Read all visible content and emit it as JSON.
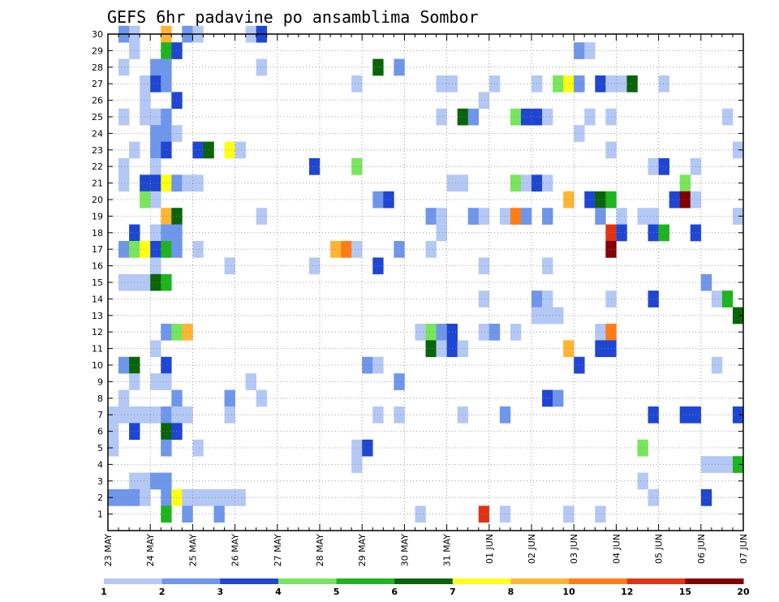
{
  "chart_data": {
    "type": "heatmap",
    "title": "GEFS 6hr padavine po ansamblima Sombor",
    "xlabel": "",
    "ylabel": "",
    "x_tick_labels": [
      "23 MAY",
      "24 MAY",
      "25 MAY",
      "26 MAY",
      "27 MAY",
      "28 MAY",
      "29 MAY",
      "30 MAY",
      "31 MAY",
      "01 JUN",
      "02 JUN",
      "03 JUN",
      "04 JUN",
      "05 JUN",
      "06 JUN",
      "07 JUN"
    ],
    "y_tick_labels": [
      "1",
      "2",
      "3",
      "4",
      "5",
      "6",
      "7",
      "8",
      "9",
      "10",
      "11",
      "12",
      "13",
      "14",
      "15",
      "16",
      "17",
      "18",
      "19",
      "20",
      "21",
      "22",
      "23",
      "24",
      "25",
      "26",
      "27",
      "28",
      "29",
      "30"
    ],
    "x_steps_total": 60,
    "ylim": [
      0,
      30
    ],
    "grid": true,
    "legend_placement": "bottom",
    "legend": {
      "labels": [
        "1",
        "2",
        "3",
        "4",
        "5",
        "6",
        "7",
        "8",
        "10",
        "12",
        "15",
        "20"
      ],
      "colors": [
        "#b4c8f5",
        "#6e96eb",
        "#1e46d2",
        "#78e65a",
        "#1eb41e",
        "#0a640a",
        "#ffff14",
        "#ffb432",
        "#ff7d14",
        "#e13214",
        "#820000"
      ]
    },
    "category_colors": {
      "1": "#b4c8f5",
      "2": "#6e96eb",
      "3": "#1e46d2",
      "4": "#78e65a",
      "5": "#1eb41e",
      "6": "#0a640a",
      "7": "#ffff14",
      "8": "#ffb432",
      "9": "#ff7d14",
      "10": "#e13214",
      "11": "#820000"
    },
    "cells": [
      {
        "m": 30,
        "t": 1,
        "c": 2
      },
      {
        "m": 30,
        "t": 2,
        "c": 1
      },
      {
        "m": 30,
        "t": 5,
        "c": 8
      },
      {
        "m": 30,
        "t": 7,
        "c": 2
      },
      {
        "m": 30,
        "t": 8,
        "c": 1
      },
      {
        "m": 30,
        "t": 13,
        "c": 1
      },
      {
        "m": 30,
        "t": 14,
        "c": 3
      },
      {
        "m": 29,
        "t": 2,
        "c": 1
      },
      {
        "m": 29,
        "t": 5,
        "c": 5
      },
      {
        "m": 29,
        "t": 6,
        "c": 3
      },
      {
        "m": 29,
        "t": 44,
        "c": 2
      },
      {
        "m": 29,
        "t": 45,
        "c": 1
      },
      {
        "m": 28,
        "t": 1,
        "c": 1
      },
      {
        "m": 28,
        "t": 4,
        "c": 2
      },
      {
        "m": 28,
        "t": 5,
        "c": 2
      },
      {
        "m": 28,
        "t": 14,
        "c": 1
      },
      {
        "m": 28,
        "t": 25,
        "c": 6
      },
      {
        "m": 28,
        "t": 27,
        "c": 2
      },
      {
        "m": 27,
        "t": 3,
        "c": 1
      },
      {
        "m": 27,
        "t": 4,
        "c": 3
      },
      {
        "m": 27,
        "t": 5,
        "c": 2
      },
      {
        "m": 27,
        "t": 23,
        "c": 1
      },
      {
        "m": 27,
        "t": 31,
        "c": 1
      },
      {
        "m": 27,
        "t": 32,
        "c": 1
      },
      {
        "m": 27,
        "t": 36,
        "c": 1
      },
      {
        "m": 27,
        "t": 40,
        "c": 1
      },
      {
        "m": 27,
        "t": 42,
        "c": 4
      },
      {
        "m": 27,
        "t": 43,
        "c": 7
      },
      {
        "m": 27,
        "t": 44,
        "c": 2
      },
      {
        "m": 27,
        "t": 46,
        "c": 3
      },
      {
        "m": 27,
        "t": 47,
        "c": 1
      },
      {
        "m": 27,
        "t": 48,
        "c": 1
      },
      {
        "m": 27,
        "t": 49,
        "c": 6
      },
      {
        "m": 27,
        "t": 52,
        "c": 1
      },
      {
        "m": 26,
        "t": 3,
        "c": 1
      },
      {
        "m": 26,
        "t": 6,
        "c": 3
      },
      {
        "m": 26,
        "t": 35,
        "c": 1
      },
      {
        "m": 25,
        "t": 1,
        "c": 1
      },
      {
        "m": 25,
        "t": 3,
        "c": 1
      },
      {
        "m": 25,
        "t": 4,
        "c": 1
      },
      {
        "m": 25,
        "t": 5,
        "c": 2
      },
      {
        "m": 25,
        "t": 31,
        "c": 1
      },
      {
        "m": 25,
        "t": 33,
        "c": 6
      },
      {
        "m": 25,
        "t": 34,
        "c": 2
      },
      {
        "m": 25,
        "t": 38,
        "c": 4
      },
      {
        "m": 25,
        "t": 39,
        "c": 3
      },
      {
        "m": 25,
        "t": 40,
        "c": 3
      },
      {
        "m": 25,
        "t": 41,
        "c": 1
      },
      {
        "m": 25,
        "t": 45,
        "c": 1
      },
      {
        "m": 25,
        "t": 47,
        "c": 1
      },
      {
        "m": 25,
        "t": 58,
        "c": 1
      },
      {
        "m": 24,
        "t": 4,
        "c": 2
      },
      {
        "m": 24,
        "t": 5,
        "c": 2
      },
      {
        "m": 24,
        "t": 6,
        "c": 1
      },
      {
        "m": 24,
        "t": 44,
        "c": 1
      },
      {
        "m": 23,
        "t": 2,
        "c": 1
      },
      {
        "m": 23,
        "t": 4,
        "c": 2
      },
      {
        "m": 23,
        "t": 5,
        "c": 3
      },
      {
        "m": 23,
        "t": 8,
        "c": 3
      },
      {
        "m": 23,
        "t": 9,
        "c": 6
      },
      {
        "m": 23,
        "t": 11,
        "c": 7
      },
      {
        "m": 23,
        "t": 12,
        "c": 1
      },
      {
        "m": 23,
        "t": 47,
        "c": 1
      },
      {
        "m": 23,
        "t": 59,
        "c": 1
      },
      {
        "m": 22,
        "t": 1,
        "c": 1
      },
      {
        "m": 22,
        "t": 4,
        "c": 1
      },
      {
        "m": 22,
        "t": 19,
        "c": 3
      },
      {
        "m": 22,
        "t": 23,
        "c": 4
      },
      {
        "m": 22,
        "t": 51,
        "c": 1
      },
      {
        "m": 22,
        "t": 52,
        "c": 3
      },
      {
        "m": 22,
        "t": 55,
        "c": 1
      },
      {
        "m": 21,
        "t": 1,
        "c": 1
      },
      {
        "m": 21,
        "t": 3,
        "c": 3
      },
      {
        "m": 21,
        "t": 4,
        "c": 3
      },
      {
        "m": 21,
        "t": 5,
        "c": 7
      },
      {
        "m": 21,
        "t": 6,
        "c": 2
      },
      {
        "m": 21,
        "t": 7,
        "c": 1
      },
      {
        "m": 21,
        "t": 8,
        "c": 1
      },
      {
        "m": 21,
        "t": 32,
        "c": 1
      },
      {
        "m": 21,
        "t": 33,
        "c": 1
      },
      {
        "m": 21,
        "t": 38,
        "c": 4
      },
      {
        "m": 21,
        "t": 39,
        "c": 1
      },
      {
        "m": 21,
        "t": 40,
        "c": 3
      },
      {
        "m": 21,
        "t": 41,
        "c": 1
      },
      {
        "m": 21,
        "t": 54,
        "c": 4
      },
      {
        "m": 20,
        "t": 3,
        "c": 4
      },
      {
        "m": 20,
        "t": 4,
        "c": 1
      },
      {
        "m": 20,
        "t": 25,
        "c": 2
      },
      {
        "m": 20,
        "t": 26,
        "c": 3
      },
      {
        "m": 20,
        "t": 43,
        "c": 8
      },
      {
        "m": 20,
        "t": 45,
        "c": 3
      },
      {
        "m": 20,
        "t": 46,
        "c": 6
      },
      {
        "m": 20,
        "t": 47,
        "c": 5
      },
      {
        "m": 20,
        "t": 53,
        "c": 3
      },
      {
        "m": 20,
        "t": 54,
        "c": 11
      },
      {
        "m": 20,
        "t": 55,
        "c": 1
      },
      {
        "m": 19,
        "t": 5,
        "c": 8
      },
      {
        "m": 19,
        "t": 6,
        "c": 6
      },
      {
        "m": 19,
        "t": 14,
        "c": 1
      },
      {
        "m": 19,
        "t": 30,
        "c": 2
      },
      {
        "m": 19,
        "t": 31,
        "c": 1
      },
      {
        "m": 19,
        "t": 34,
        "c": 2
      },
      {
        "m": 19,
        "t": 35,
        "c": 1
      },
      {
        "m": 19,
        "t": 37,
        "c": 1
      },
      {
        "m": 19,
        "t": 38,
        "c": 9
      },
      {
        "m": 19,
        "t": 39,
        "c": 2
      },
      {
        "m": 19,
        "t": 41,
        "c": 2
      },
      {
        "m": 19,
        "t": 46,
        "c": 2
      },
      {
        "m": 19,
        "t": 48,
        "c": 1
      },
      {
        "m": 19,
        "t": 50,
        "c": 1
      },
      {
        "m": 19,
        "t": 51,
        "c": 1
      },
      {
        "m": 19,
        "t": 59,
        "c": 1
      },
      {
        "m": 18,
        "t": 2,
        "c": 3
      },
      {
        "m": 18,
        "t": 4,
        "c": 1
      },
      {
        "m": 18,
        "t": 5,
        "c": 2
      },
      {
        "m": 18,
        "t": 6,
        "c": 2
      },
      {
        "m": 18,
        "t": 31,
        "c": 1
      },
      {
        "m": 18,
        "t": 47,
        "c": 10
      },
      {
        "m": 18,
        "t": 48,
        "c": 3
      },
      {
        "m": 18,
        "t": 51,
        "c": 3
      },
      {
        "m": 18,
        "t": 52,
        "c": 5
      },
      {
        "m": 18,
        "t": 55,
        "c": 3
      },
      {
        "m": 17,
        "t": 1,
        "c": 2
      },
      {
        "m": 17,
        "t": 2,
        "c": 4
      },
      {
        "m": 17,
        "t": 3,
        "c": 7
      },
      {
        "m": 17,
        "t": 4,
        "c": 3
      },
      {
        "m": 17,
        "t": 5,
        "c": 5
      },
      {
        "m": 17,
        "t": 6,
        "c": 2
      },
      {
        "m": 17,
        "t": 8,
        "c": 1
      },
      {
        "m": 17,
        "t": 21,
        "c": 8
      },
      {
        "m": 17,
        "t": 22,
        "c": 9
      },
      {
        "m": 17,
        "t": 23,
        "c": 1
      },
      {
        "m": 17,
        "t": 27,
        "c": 2
      },
      {
        "m": 17,
        "t": 30,
        "c": 1
      },
      {
        "m": 17,
        "t": 47,
        "c": 11
      },
      {
        "m": 16,
        "t": 4,
        "c": 1
      },
      {
        "m": 16,
        "t": 11,
        "c": 1
      },
      {
        "m": 16,
        "t": 19,
        "c": 1
      },
      {
        "m": 16,
        "t": 25,
        "c": 3
      },
      {
        "m": 16,
        "t": 35,
        "c": 1
      },
      {
        "m": 16,
        "t": 41,
        "c": 1
      },
      {
        "m": 15,
        "t": 1,
        "c": 1
      },
      {
        "m": 15,
        "t": 2,
        "c": 1
      },
      {
        "m": 15,
        "t": 3,
        "c": 1
      },
      {
        "m": 15,
        "t": 4,
        "c": 6
      },
      {
        "m": 15,
        "t": 5,
        "c": 5
      },
      {
        "m": 15,
        "t": 56,
        "c": 2
      },
      {
        "m": 14,
        "t": 35,
        "c": 1
      },
      {
        "m": 14,
        "t": 40,
        "c": 2
      },
      {
        "m": 14,
        "t": 41,
        "c": 1
      },
      {
        "m": 14,
        "t": 47,
        "c": 1
      },
      {
        "m": 14,
        "t": 51,
        "c": 3
      },
      {
        "m": 14,
        "t": 57,
        "c": 1
      },
      {
        "m": 14,
        "t": 58,
        "c": 5
      },
      {
        "m": 13,
        "t": 40,
        "c": 1
      },
      {
        "m": 13,
        "t": 41,
        "c": 1
      },
      {
        "m": 13,
        "t": 42,
        "c": 1
      },
      {
        "m": 13,
        "t": 59,
        "c": 6
      },
      {
        "m": 12,
        "t": 5,
        "c": 2
      },
      {
        "m": 12,
        "t": 6,
        "c": 4
      },
      {
        "m": 12,
        "t": 7,
        "c": 8
      },
      {
        "m": 12,
        "t": 29,
        "c": 1
      },
      {
        "m": 12,
        "t": 30,
        "c": 4
      },
      {
        "m": 12,
        "t": 31,
        "c": 2
      },
      {
        "m": 12,
        "t": 32,
        "c": 3
      },
      {
        "m": 12,
        "t": 35,
        "c": 1
      },
      {
        "m": 12,
        "t": 36,
        "c": 2
      },
      {
        "m": 12,
        "t": 38,
        "c": 1
      },
      {
        "m": 12,
        "t": 46,
        "c": 1
      },
      {
        "m": 12,
        "t": 47,
        "c": 9
      },
      {
        "m": 11,
        "t": 4,
        "c": 1
      },
      {
        "m": 11,
        "t": 30,
        "c": 6
      },
      {
        "m": 11,
        "t": 31,
        "c": 1
      },
      {
        "m": 11,
        "t": 32,
        "c": 3
      },
      {
        "m": 11,
        "t": 33,
        "c": 1
      },
      {
        "m": 11,
        "t": 43,
        "c": 8
      },
      {
        "m": 11,
        "t": 46,
        "c": 3
      },
      {
        "m": 11,
        "t": 47,
        "c": 3
      },
      {
        "m": 10,
        "t": 1,
        "c": 2
      },
      {
        "m": 10,
        "t": 2,
        "c": 6
      },
      {
        "m": 10,
        "t": 5,
        "c": 3
      },
      {
        "m": 10,
        "t": 24,
        "c": 2
      },
      {
        "m": 10,
        "t": 25,
        "c": 1
      },
      {
        "m": 10,
        "t": 44,
        "c": 3
      },
      {
        "m": 10,
        "t": 57,
        "c": 1
      },
      {
        "m": 9,
        "t": 2,
        "c": 1
      },
      {
        "m": 9,
        "t": 4,
        "c": 1
      },
      {
        "m": 9,
        "t": 5,
        "c": 1
      },
      {
        "m": 9,
        "t": 13,
        "c": 1
      },
      {
        "m": 9,
        "t": 27,
        "c": 2
      },
      {
        "m": 8,
        "t": 1,
        "c": 1
      },
      {
        "m": 8,
        "t": 6,
        "c": 2
      },
      {
        "m": 8,
        "t": 11,
        "c": 2
      },
      {
        "m": 8,
        "t": 14,
        "c": 1
      },
      {
        "m": 8,
        "t": 41,
        "c": 3
      },
      {
        "m": 8,
        "t": 42,
        "c": 2
      },
      {
        "m": 7,
        "t": 0,
        "c": 1
      },
      {
        "m": 7,
        "t": 1,
        "c": 1
      },
      {
        "m": 7,
        "t": 2,
        "c": 1
      },
      {
        "m": 7,
        "t": 3,
        "c": 1
      },
      {
        "m": 7,
        "t": 4,
        "c": 1
      },
      {
        "m": 7,
        "t": 5,
        "c": 2
      },
      {
        "m": 7,
        "t": 6,
        "c": 1
      },
      {
        "m": 7,
        "t": 7,
        "c": 1
      },
      {
        "m": 7,
        "t": 11,
        "c": 1
      },
      {
        "m": 7,
        "t": 25,
        "c": 1
      },
      {
        "m": 7,
        "t": 27,
        "c": 1
      },
      {
        "m": 7,
        "t": 33,
        "c": 1
      },
      {
        "m": 7,
        "t": 37,
        "c": 2
      },
      {
        "m": 7,
        "t": 51,
        "c": 3
      },
      {
        "m": 7,
        "t": 54,
        "c": 3
      },
      {
        "m": 7,
        "t": 55,
        "c": 3
      },
      {
        "m": 7,
        "t": 59,
        "c": 3
      },
      {
        "m": 6,
        "t": 0,
        "c": 1
      },
      {
        "m": 6,
        "t": 2,
        "c": 3
      },
      {
        "m": 6,
        "t": 5,
        "c": 6
      },
      {
        "m": 6,
        "t": 6,
        "c": 3
      },
      {
        "m": 5,
        "t": 0,
        "c": 1
      },
      {
        "m": 5,
        "t": 5,
        "c": 2
      },
      {
        "m": 5,
        "t": 8,
        "c": 1
      },
      {
        "m": 5,
        "t": 23,
        "c": 1
      },
      {
        "m": 5,
        "t": 24,
        "c": 3
      },
      {
        "m": 5,
        "t": 50,
        "c": 4
      },
      {
        "m": 4,
        "t": 23,
        "c": 1
      },
      {
        "m": 4,
        "t": 56,
        "c": 1
      },
      {
        "m": 4,
        "t": 57,
        "c": 1
      },
      {
        "m": 4,
        "t": 58,
        "c": 1
      },
      {
        "m": 4,
        "t": 59,
        "c": 5
      },
      {
        "m": 3,
        "t": 2,
        "c": 1
      },
      {
        "m": 3,
        "t": 3,
        "c": 1
      },
      {
        "m": 3,
        "t": 4,
        "c": 2
      },
      {
        "m": 3,
        "t": 5,
        "c": 2
      },
      {
        "m": 3,
        "t": 50,
        "c": 1
      },
      {
        "m": 2,
        "t": 0,
        "c": 2
      },
      {
        "m": 2,
        "t": 1,
        "c": 2
      },
      {
        "m": 2,
        "t": 2,
        "c": 2
      },
      {
        "m": 2,
        "t": 3,
        "c": 1
      },
      {
        "m": 2,
        "t": 5,
        "c": 2
      },
      {
        "m": 2,
        "t": 6,
        "c": 7
      },
      {
        "m": 2,
        "t": 7,
        "c": 1
      },
      {
        "m": 2,
        "t": 8,
        "c": 1
      },
      {
        "m": 2,
        "t": 9,
        "c": 1
      },
      {
        "m": 2,
        "t": 10,
        "c": 1
      },
      {
        "m": 2,
        "t": 11,
        "c": 1
      },
      {
        "m": 2,
        "t": 12,
        "c": 1
      },
      {
        "m": 2,
        "t": 51,
        "c": 1
      },
      {
        "m": 2,
        "t": 56,
        "c": 3
      },
      {
        "m": 1,
        "t": 5,
        "c": 5
      },
      {
        "m": 1,
        "t": 7,
        "c": 2
      },
      {
        "m": 1,
        "t": 10,
        "c": 2
      },
      {
        "m": 1,
        "t": 29,
        "c": 1
      },
      {
        "m": 1,
        "t": 35,
        "c": 10
      },
      {
        "m": 1,
        "t": 37,
        "c": 1
      },
      {
        "m": 1,
        "t": 43,
        "c": 1
      },
      {
        "m": 1,
        "t": 46,
        "c": 1
      }
    ]
  }
}
